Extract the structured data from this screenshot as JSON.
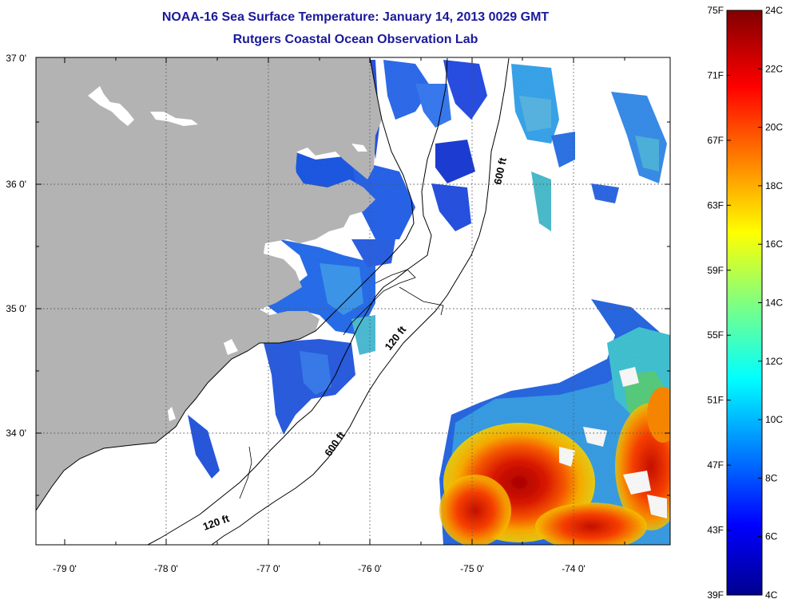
{
  "title": {
    "line1": "NOAA-16 Sea Surface Temperature:  January 14, 2013 0029 GMT",
    "line2": "Rutgers Coastal Ocean Observation Lab"
  },
  "map": {
    "lon_ticks": [
      "-79 0'",
      "-78 0'",
      "-77 0'",
      "-76 0'",
      "-75 0'",
      "-74 0'"
    ],
    "lon_values": [
      -79,
      -78,
      -77,
      -76,
      -75,
      -74
    ],
    "lat_ticks": [
      "37 0'",
      "36 0'",
      "35 0'",
      "34 0'"
    ],
    "lat_values": [
      37,
      36,
      35,
      34
    ],
    "lon_range": [
      -79.3,
      -73.1
    ],
    "lat_range": [
      33.1,
      37.0
    ],
    "contour_labels": [
      {
        "text": "600 ft",
        "lon": -75.22,
        "lat": 36.15
      },
      {
        "text": "120 ft",
        "lon": -75.85,
        "lat": 34.75
      },
      {
        "text": "600 ft",
        "lon": -76.45,
        "lat": 33.95
      },
      {
        "text": "120 ft",
        "lon": -77.75,
        "lat": 33.5
      }
    ],
    "colors": {
      "land": "#b3b3b3",
      "inland_water": "#ffffff",
      "ocean_no_data": "#ffffff",
      "grid": "#444444"
    }
  },
  "colorbar": {
    "fahrenheit_labels": [
      "75F",
      "71F",
      "67F",
      "63F",
      "59F",
      "55F",
      "51F",
      "47F",
      "43F",
      "39F"
    ],
    "celsius_labels": [
      "24C",
      "22C",
      "20C",
      "18C",
      "16C",
      "14C",
      "12C",
      "10C",
      "8C",
      "6C",
      "4C"
    ],
    "range_c": [
      4,
      24
    ]
  }
}
